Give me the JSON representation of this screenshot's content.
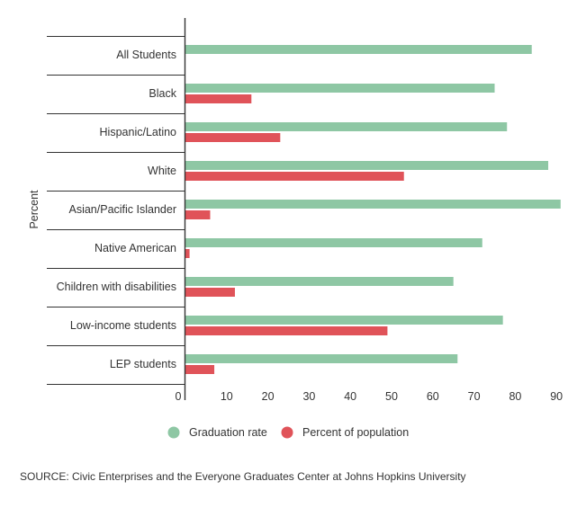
{
  "chart_data": {
    "type": "bar",
    "orientation": "horizontal",
    "categories": [
      "All Students",
      "Black",
      "Hispanic/Latino",
      "White",
      "Asian/Pacific Islander",
      "Native American",
      "Children with disabilities",
      "Low-income students",
      "LEP students"
    ],
    "series": [
      {
        "name": "Graduation rate",
        "color": "#8ec7a4",
        "values": [
          84,
          75,
          78,
          88,
          91,
          72,
          65,
          77,
          66
        ]
      },
      {
        "name": "Percent of population",
        "color": "#e05359",
        "values": [
          null,
          16,
          23,
          53,
          6,
          1,
          12,
          49,
          7
        ]
      }
    ],
    "xlim": [
      0,
      91
    ],
    "xticks": [
      "0",
      "10",
      "20",
      "30",
      "40",
      "50",
      "60",
      "70",
      "80",
      "90"
    ],
    "xtick_values": [
      0,
      10,
      20,
      30,
      40,
      50,
      60,
      70,
      80,
      90
    ],
    "ylabel": "Percent",
    "legend_position": "bottom",
    "grid": false
  },
  "source": "SOURCE: Civic Enterprises and the Everyone Graduates Center at Johns Hopkins University"
}
